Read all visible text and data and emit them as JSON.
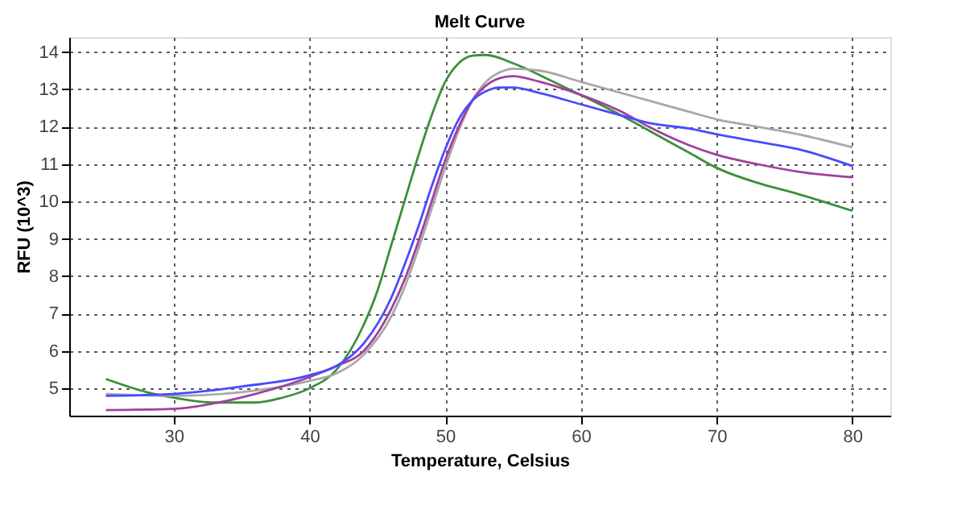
{
  "chart_data": {
    "type": "line",
    "title": "Melt Curve",
    "xlabel": "Temperature, Celsius",
    "ylabel": "RFU (10^3)",
    "xlim": [
      22.3,
      82.8
    ],
    "xticks": [
      30,
      40,
      50,
      60,
      70,
      80
    ],
    "ylim": [
      4.27,
      14.4
    ],
    "yticks": [
      5,
      6,
      7,
      8,
      9,
      10,
      11,
      12,
      13,
      14
    ],
    "grid": true,
    "line_style": "solid",
    "marker": "none",
    "legend": false,
    "series": [
      {
        "color": "#3d8f3d",
        "x": [
          25,
          28,
          30,
          33,
          36,
          38,
          40,
          42,
          44,
          45,
          46,
          47,
          48,
          49,
          50,
          51,
          52,
          53,
          55,
          58,
          60,
          63,
          65,
          68,
          70,
          73,
          76,
          80
        ],
        "values": [
          5.25,
          4.9,
          4.75,
          4.62,
          4.62,
          4.75,
          5.0,
          5.5,
          6.7,
          7.6,
          8.8,
          10.0,
          11.2,
          12.3,
          13.2,
          13.7,
          13.9,
          13.92,
          13.7,
          13.2,
          12.85,
          12.3,
          11.9,
          11.3,
          10.9,
          10.5,
          10.2,
          9.75
        ]
      },
      {
        "color": "#a8a8a8",
        "x": [
          25,
          30,
          35,
          40,
          42,
          44,
          46,
          47,
          48,
          49,
          50,
          51,
          52,
          53,
          54,
          55,
          57,
          60,
          63,
          65,
          68,
          70,
          73,
          76,
          80
        ],
        "values": [
          4.85,
          4.8,
          4.9,
          5.2,
          5.4,
          5.9,
          6.9,
          7.7,
          8.7,
          9.8,
          10.9,
          11.9,
          12.7,
          13.2,
          13.45,
          13.55,
          13.5,
          13.2,
          12.9,
          12.7,
          12.4,
          12.2,
          12.0,
          11.8,
          11.45
        ]
      },
      {
        "color": "#a040a0",
        "x": [
          25,
          30,
          33,
          36,
          40,
          42,
          44,
          46,
          47,
          48,
          49,
          50,
          51,
          52,
          53,
          54,
          55,
          57,
          60,
          63,
          65,
          68,
          70,
          73,
          76,
          80
        ],
        "values": [
          4.42,
          4.45,
          4.6,
          4.85,
          5.3,
          5.6,
          6.0,
          7.1,
          7.9,
          8.9,
          10.0,
          11.1,
          12.0,
          12.7,
          13.1,
          13.3,
          13.35,
          13.2,
          12.85,
          12.4,
          12.0,
          11.5,
          11.25,
          11.0,
          10.8,
          10.65
        ]
      },
      {
        "color": "#4a4aff",
        "x": [
          25,
          30,
          35,
          40,
          42,
          44,
          46,
          47,
          48,
          49,
          50,
          51,
          52,
          53,
          54,
          55,
          57,
          60,
          63,
          65,
          68,
          70,
          73,
          76,
          80
        ],
        "values": [
          4.8,
          4.85,
          5.05,
          5.35,
          5.6,
          6.2,
          7.4,
          8.3,
          9.3,
          10.4,
          11.4,
          12.2,
          12.7,
          12.95,
          13.05,
          13.05,
          12.9,
          12.6,
          12.3,
          12.1,
          11.95,
          11.8,
          11.6,
          11.4,
          10.95
        ]
      }
    ]
  }
}
